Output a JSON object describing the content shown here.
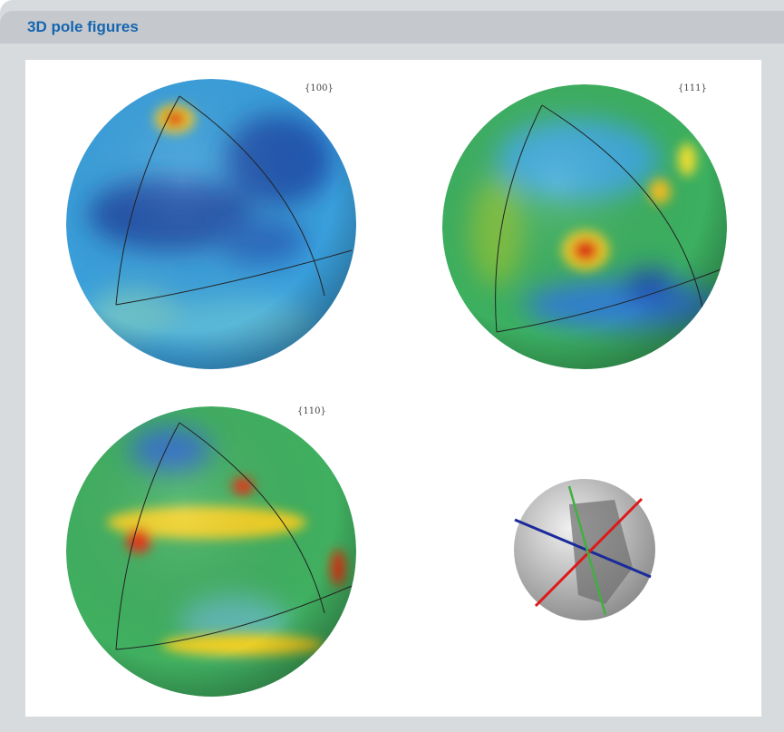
{
  "header": {
    "title": "3D pole figures"
  },
  "figures": [
    {
      "label": "{100}"
    },
    {
      "label": "{111}"
    },
    {
      "label": "{110}"
    }
  ]
}
